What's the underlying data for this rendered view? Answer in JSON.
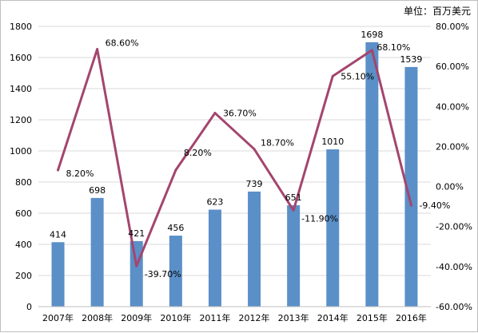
{
  "unit_label": "单位：百万美元",
  "chart_data": {
    "type": "bar",
    "categories": [
      "2007年",
      "2008年",
      "2009年",
      "2010年",
      "2011年",
      "2012年",
      "2013年",
      "2014年",
      "2015年",
      "2016年"
    ],
    "series": [
      {
        "values": [
          414,
          698,
          421,
          456,
          623,
          739,
          651,
          1010,
          1698,
          1539
        ],
        "color": "#5b8fc7",
        "axis": "left",
        "type": "bar"
      },
      {
        "values": [
          8.2,
          68.6,
          -39.7,
          8.2,
          36.7,
          18.7,
          -11.9,
          55.1,
          68.1,
          -9.4
        ],
        "color": "#a4456e",
        "axis": "right",
        "type": "line",
        "value_format": "percent_2dp"
      }
    ],
    "bar_labels": [
      "414",
      "698",
      "421",
      "456",
      "623",
      "739",
      "651",
      "1010",
      "1698",
      "1539"
    ],
    "line_labels": [
      "8.20%",
      "68.60%",
      "-39.70%",
      "8.20%",
      "36.70%",
      "18.70%",
      "-11.90%",
      "55.10%",
      "68.10%",
      "-9.40%"
    ],
    "y_left": {
      "min": 0,
      "max": 1800,
      "step": 200,
      "tick_labels": [
        "0",
        "200",
        "400",
        "600",
        "800",
        "1000",
        "1200",
        "1400",
        "1600",
        "1800"
      ]
    },
    "y_right": {
      "min": -60,
      "max": 80,
      "step": 20,
      "tick_labels": [
        "-60.00%",
        "-40.00%",
        "-20.00%",
        "0.00%",
        "20.00%",
        "40.00%",
        "60.00%",
        "80.00%"
      ]
    },
    "grid": true,
    "legend": "none"
  }
}
